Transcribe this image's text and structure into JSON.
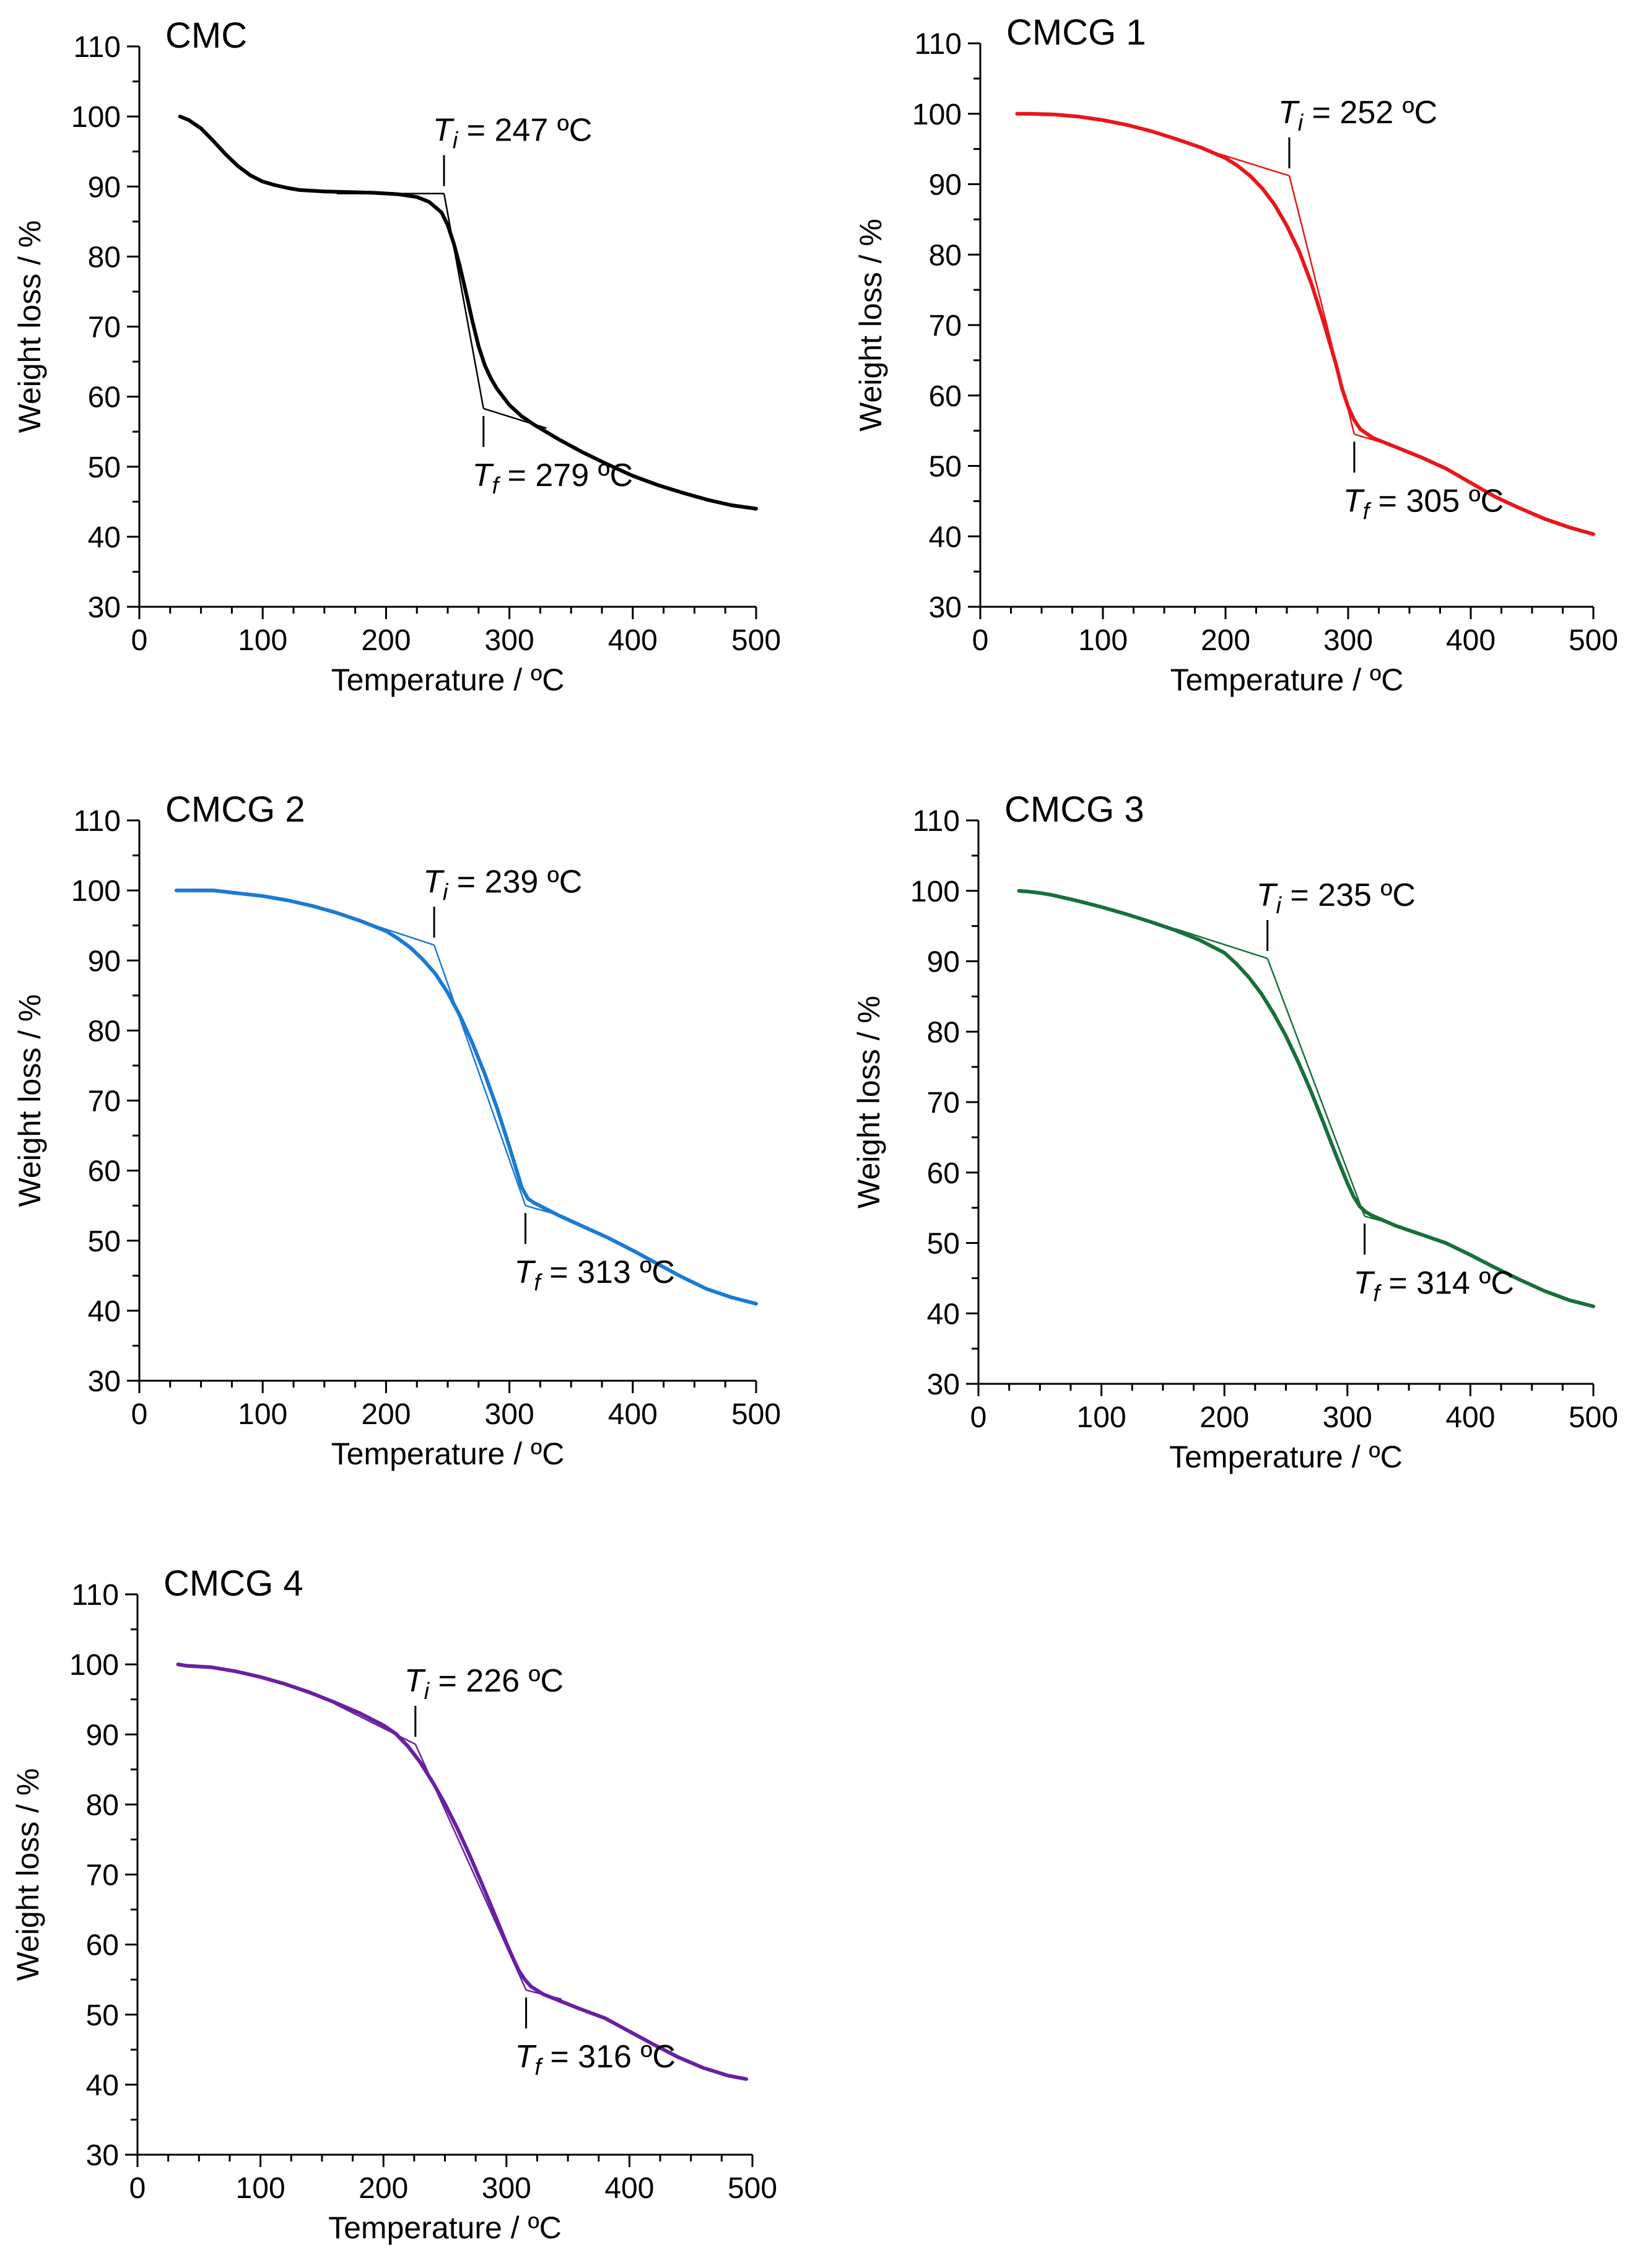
{
  "chart_data": [
    {
      "type": "line",
      "title": "CMC",
      "xlabel": "Temperature / ºC",
      "ylabel": "Weight loss / %",
      "xlim": [
        0,
        500
      ],
      "ylim": [
        30,
        110
      ],
      "xticks": [
        0,
        100,
        200,
        300,
        400,
        500
      ],
      "yticks": [
        30,
        40,
        50,
        60,
        70,
        80,
        90,
        100,
        110
      ],
      "grid": false,
      "color": "#000000",
      "series": [
        {
          "x": [
            33,
            40,
            50,
            60,
            70,
            80,
            90,
            100,
            110,
            120,
            130,
            150,
            170,
            190,
            210,
            225,
            235,
            245,
            250,
            255,
            260,
            265,
            270,
            275,
            280,
            285,
            290,
            300,
            310,
            320,
            340,
            360,
            380,
            400,
            420,
            440,
            460,
            480,
            500
          ],
          "y": [
            100,
            99.5,
            98.3,
            96.5,
            94.6,
            92.9,
            91.6,
            90.7,
            90.2,
            89.8,
            89.5,
            89.3,
            89.2,
            89.1,
            88.9,
            88.5,
            87.8,
            86.3,
            84.5,
            81.8,
            78.5,
            74.7,
            70.8,
            67.2,
            64.5,
            62.6,
            61.1,
            58.8,
            57.2,
            56.0,
            53.9,
            52.0,
            50.3,
            48.7,
            47.4,
            46.3,
            45.3,
            44.5,
            44.0
          ]
        }
      ],
      "tangents": [
        {
          "x": [
            160,
            247
          ],
          "y": [
            89.0,
            89.0
          ]
        },
        {
          "x": [
            247,
            279
          ],
          "y": [
            89.0,
            58.3
          ]
        },
        {
          "x": [
            279,
            330
          ],
          "y": [
            58.3,
            55.5
          ]
        }
      ],
      "annotations": [
        {
          "symbol": "T",
          "sub": "i",
          "text": " = 247 ºC",
          "x": 247,
          "y": 89.0,
          "position": "above"
        },
        {
          "symbol": "T",
          "sub": "f",
          "text": " = 279 ºC",
          "x": 279,
          "y": 58.3,
          "position": "below"
        }
      ]
    },
    {
      "type": "line",
      "title": "CMCG 1",
      "xlabel": "Temperature / ºC",
      "ylabel": "Weight loss / %",
      "xlim": [
        0,
        500
      ],
      "ylim": [
        30,
        110
      ],
      "xticks": [
        0,
        100,
        200,
        300,
        400,
        500
      ],
      "yticks": [
        30,
        40,
        50,
        60,
        70,
        80,
        90,
        100,
        110
      ],
      "grid": false,
      "color": "#e8161b",
      "series": [
        {
          "x": [
            30,
            40,
            60,
            80,
            100,
            120,
            140,
            160,
            180,
            200,
            210,
            220,
            230,
            240,
            250,
            260,
            270,
            280,
            290,
            295,
            300,
            305,
            310,
            320,
            330,
            340,
            360,
            380,
            400,
            420,
            440,
            460,
            480,
            500
          ],
          "y": [
            100,
            100,
            99.9,
            99.6,
            99.1,
            98.4,
            97.5,
            96.4,
            95.2,
            93.7,
            92.6,
            91.2,
            89.4,
            87.1,
            84.1,
            80.5,
            75.9,
            70.4,
            64.5,
            61.0,
            58.4,
            56.5,
            55.2,
            54.0,
            53.3,
            52.6,
            51.2,
            49.6,
            47.6,
            45.6,
            44.0,
            42.5,
            41.3,
            40.3
          ]
        }
      ],
      "tangents": [
        {
          "x": [
            180,
            252
          ],
          "y": [
            95.1,
            91.2
          ]
        },
        {
          "x": [
            252,
            305
          ],
          "y": [
            91.2,
            54.5
          ]
        },
        {
          "x": [
            305,
            340
          ],
          "y": [
            54.5,
            52.7
          ]
        }
      ],
      "annotations": [
        {
          "symbol": "T",
          "sub": "i",
          "text": " = 252 ºC",
          "x": 252,
          "y": 91.2,
          "position": "above"
        },
        {
          "symbol": "T",
          "sub": "f",
          "text": " = 305 ºC",
          "x": 305,
          "y": 54.5,
          "position": "below"
        }
      ]
    },
    {
      "type": "line",
      "title": "CMCG 2",
      "xlabel": "Temperature / ºC",
      "ylabel": "Weight loss / %",
      "xlim": [
        0,
        500
      ],
      "ylim": [
        30,
        110
      ],
      "xticks": [
        0,
        100,
        200,
        300,
        400,
        500
      ],
      "yticks": [
        30,
        40,
        50,
        60,
        70,
        80,
        90,
        100,
        110
      ],
      "grid": false,
      "color": "#1b7ad3",
      "series": [
        {
          "x": [
            30,
            40,
            60,
            70,
            80,
            100,
            120,
            140,
            160,
            180,
            200,
            210,
            220,
            230,
            240,
            250,
            260,
            270,
            280,
            290,
            300,
            305,
            310,
            315,
            320,
            340,
            360,
            380,
            400,
            420,
            440,
            460,
            480,
            500
          ],
          "y": [
            100,
            100,
            100,
            99.8,
            99.6,
            99.2,
            98.6,
            97.8,
            96.8,
            95.6,
            94.2,
            93.1,
            91.8,
            90.1,
            88.1,
            85.4,
            82.1,
            78.2,
            73.8,
            68.9,
            63.4,
            60.5,
            57.6,
            56.0,
            55.4,
            53.6,
            52.0,
            50.4,
            48.6,
            46.7,
            44.8,
            43.1,
            41.9,
            41.0
          ]
        }
      ],
      "tangents": [
        {
          "x": [
            170,
            239
          ],
          "y": [
            96.2,
            92.2
          ]
        },
        {
          "x": [
            239,
            313
          ],
          "y": [
            92.2,
            55.0
          ]
        },
        {
          "x": [
            313,
            345
          ],
          "y": [
            55.0,
            53.4
          ]
        }
      ],
      "annotations": [
        {
          "symbol": "T",
          "sub": "i",
          "text": " = 239 ºC",
          "x": 239,
          "y": 92.2,
          "position": "above"
        },
        {
          "symbol": "T",
          "sub": "f",
          "text": " = 313 ºC",
          "x": 313,
          "y": 55.0,
          "position": "below"
        }
      ]
    },
    {
      "type": "line",
      "title": "CMCG 3",
      "xlabel": "Temperature / ºC",
      "ylabel": "Weight loss / %",
      "xlim": [
        0,
        500
      ],
      "ylim": [
        30,
        110
      ],
      "xticks": [
        0,
        100,
        200,
        300,
        400,
        500
      ],
      "yticks": [
        30,
        40,
        50,
        60,
        70,
        80,
        90,
        100,
        110
      ],
      "grid": false,
      "color": "#17703a",
      "series": [
        {
          "x": [
            33,
            40,
            50,
            60,
            80,
            100,
            120,
            140,
            160,
            180,
            200,
            210,
            220,
            230,
            240,
            250,
            260,
            270,
            280,
            290,
            300,
            305,
            310,
            315,
            320,
            340,
            360,
            380,
            400,
            420,
            440,
            460,
            480,
            500
          ],
          "y": [
            100,
            99.9,
            99.7,
            99.4,
            98.6,
            97.7,
            96.7,
            95.6,
            94.4,
            93.0,
            91.2,
            89.6,
            87.7,
            85.4,
            82.6,
            79.4,
            75.7,
            71.7,
            67.3,
            62.8,
            58.5,
            56.6,
            55.2,
            54.4,
            53.9,
            52.4,
            51.2,
            50.0,
            48.3,
            46.5,
            44.8,
            43.2,
            41.9,
            41.0
          ]
        }
      ],
      "tangents": [
        {
          "x": [
            160,
            235
          ],
          "y": [
            94.6,
            90.4
          ]
        },
        {
          "x": [
            235,
            314
          ],
          "y": [
            90.4,
            53.8
          ]
        },
        {
          "x": [
            314,
            345
          ],
          "y": [
            53.8,
            52.3
          ]
        }
      ],
      "annotations": [
        {
          "symbol": "T",
          "sub": "i",
          "text": " = 235 ºC",
          "x": 235,
          "y": 90.4,
          "position": "above"
        },
        {
          "symbol": "T",
          "sub": "f",
          "text": " = 314 ºC",
          "x": 314,
          "y": 53.8,
          "position": "below"
        }
      ]
    },
    {
      "type": "line",
      "title": "CMCG 4",
      "xlabel": "Temperature / ºC",
      "ylabel": "Weight loss / %",
      "xlim": [
        0,
        500
      ],
      "ylim": [
        30,
        110
      ],
      "xticks": [
        0,
        100,
        200,
        300,
        400,
        500
      ],
      "yticks": [
        30,
        40,
        50,
        60,
        70,
        80,
        90,
        100,
        110
      ],
      "grid": false,
      "color": "#6a1fa0",
      "series": [
        {
          "x": [
            33,
            40,
            60,
            80,
            100,
            120,
            140,
            160,
            180,
            200,
            210,
            220,
            230,
            240,
            250,
            260,
            270,
            280,
            290,
            300,
            305,
            310,
            315,
            320,
            330,
            340,
            360,
            380,
            400,
            420,
            440,
            460,
            480,
            495
          ],
          "y": [
            100,
            99.8,
            99.6,
            99.0,
            98.2,
            97.2,
            96.0,
            94.6,
            93.1,
            91.3,
            90.1,
            88.3,
            86.0,
            83.2,
            80.1,
            76.6,
            72.8,
            68.7,
            64.5,
            60.2,
            58.2,
            56.3,
            55.0,
            54.0,
            52.9,
            52.2,
            50.8,
            49.5,
            47.6,
            45.7,
            43.9,
            42.4,
            41.3,
            40.8
          ]
        }
      ],
      "tangents": [
        {
          "x": [
            160,
            226
          ],
          "y": [
            94.4,
            88.6
          ]
        },
        {
          "x": [
            226,
            316
          ],
          "y": [
            88.6,
            53.5
          ]
        },
        {
          "x": [
            316,
            345
          ],
          "y": [
            53.5,
            52.2
          ]
        }
      ],
      "annotations": [
        {
          "symbol": "T",
          "sub": "i",
          "text": " = 226 ºC",
          "x": 226,
          "y": 88.6,
          "position": "above"
        },
        {
          "symbol": "T",
          "sub": "f",
          "text": " = 316 ºC",
          "x": 316,
          "y": 53.5,
          "position": "below"
        }
      ]
    }
  ]
}
